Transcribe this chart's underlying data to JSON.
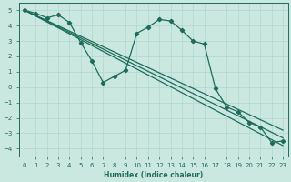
{
  "xlabel": "Humidex (Indice chaleur)",
  "xlim": [
    -0.5,
    23.5
  ],
  "ylim": [
    -4.5,
    5.5
  ],
  "xticks": [
    0,
    1,
    2,
    3,
    4,
    5,
    6,
    7,
    8,
    9,
    10,
    11,
    12,
    13,
    14,
    15,
    16,
    17,
    18,
    19,
    20,
    21,
    22,
    23
  ],
  "yticks": [
    -4,
    -3,
    -2,
    -1,
    0,
    1,
    2,
    3,
    4,
    5
  ],
  "bg_color": "#cbe8e0",
  "line_color": "#1e6b5c",
  "grid_color": "#b0d8cc",
  "data_x": [
    0,
    1,
    2,
    3,
    4,
    5,
    6,
    7,
    8,
    9,
    10,
    11,
    12,
    13,
    14,
    15,
    16,
    17,
    18,
    19,
    20,
    21,
    22,
    23
  ],
  "data_y": [
    5.0,
    4.8,
    4.5,
    4.7,
    4.2,
    2.9,
    1.7,
    0.3,
    0.7,
    1.1,
    3.5,
    3.9,
    4.4,
    4.3,
    3.7,
    3.0,
    2.8,
    -0.1,
    -1.3,
    -1.6,
    -2.3,
    -2.6,
    -3.6,
    -3.5
  ],
  "reg_lines": [
    {
      "x0": 0,
      "y0": 5.0,
      "x1": 23,
      "y1": -2.8
    },
    {
      "x0": 0,
      "y0": 5.0,
      "x1": 23,
      "y1": -3.3
    },
    {
      "x0": 0,
      "y0": 5.0,
      "x1": 23,
      "y1": -3.8
    }
  ]
}
